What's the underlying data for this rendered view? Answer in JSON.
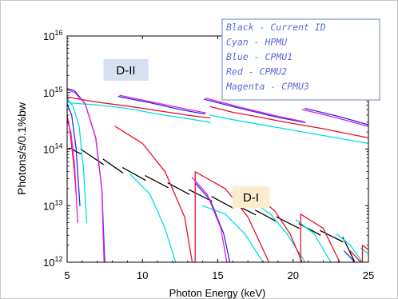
{
  "chart_data": {
    "type": "line",
    "xlabel": "Photon Energy (keV)",
    "ylabel": "Photons/s/0.1%bw",
    "xlim": [
      5,
      25
    ],
    "ylim_log10": [
      12,
      16
    ],
    "y_scale": "log",
    "xticks": [
      "5",
      "10",
      "15",
      "20",
      "25"
    ],
    "yticks": [
      {
        "base": "10",
        "exp": "12"
      },
      {
        "base": "10",
        "exp": "13"
      },
      {
        "base": "10",
        "exp": "14"
      },
      {
        "base": "10",
        "exp": "15"
      },
      {
        "base": "10",
        "exp": "16"
      }
    ],
    "legend": {
      "placement": "top-right",
      "entries": [
        {
          "color_name": "Black",
          "label": "Current ID"
        },
        {
          "color_name": "Cyan",
          "label": "HPMU"
        },
        {
          "color_name": "Blue",
          "label": "CPMU1"
        },
        {
          "color_name": "Red",
          "label": "CPMU2"
        },
        {
          "color_name": "Magenta",
          "label": "CPMU3"
        }
      ]
    },
    "annotations": [
      {
        "text": "D-II",
        "x": 8.9,
        "y_log10": 15.4,
        "bg": "#d7dff2"
      },
      {
        "text": "D-I",
        "x": 17.2,
        "y_log10": 13.15,
        "bg": "#fbeccd"
      }
    ],
    "colors": {
      "Black": "#000000",
      "Cyan": "#00e0e0",
      "Blue": "#2b2bd9",
      "Red": "#e3102a",
      "Magenta": "#e01ee0"
    },
    "series": [
      {
        "name": "Black",
        "color": "#000000",
        "segments": [
          {
            "x": [
              5.0,
              5.3,
              5.5,
              5.9
            ],
            "y": [
              14.0,
              14.02,
              13.97,
              13.92
            ]
          },
          {
            "x": [
              5.9,
              7.4
            ],
            "y": [
              14.0,
              13.73
            ]
          },
          {
            "x": [
              7.4,
              8.7
            ],
            "y": [
              13.82,
              13.58
            ]
          },
          {
            "x": [
              8.7,
              10.2
            ],
            "y": [
              13.67,
              13.45
            ]
          },
          {
            "x": [
              10.2,
              11.7
            ],
            "y": [
              13.53,
              13.32
            ]
          },
          {
            "x": [
              11.7,
              13.1
            ],
            "y": [
              13.4,
              13.2
            ]
          },
          {
            "x": [
              13.1,
              14.6
            ],
            "y": [
              13.28,
              13.08
            ]
          },
          {
            "x": [
              14.6,
              16.0
            ],
            "y": [
              13.16,
              12.96
            ]
          },
          {
            "x": [
              16.0,
              17.5
            ],
            "y": [
              13.04,
              12.84
            ]
          },
          {
            "x": [
              17.5,
              18.9
            ],
            "y": [
              12.92,
              12.72
            ]
          },
          {
            "x": [
              18.9,
              20.4
            ],
            "y": [
              12.8,
              12.6
            ]
          },
          {
            "x": [
              20.4,
              21.8
            ],
            "y": [
              12.68,
              12.48
            ]
          },
          {
            "x": [
              21.8,
              23.3
            ],
            "y": [
              12.56,
              12.36
            ]
          },
          {
            "x": [
              23.3,
              24.1
            ],
            "y": [
              12.44,
              12.0
            ]
          }
        ]
      },
      {
        "name": "Cyan",
        "color": "#00e0e0",
        "segments": [
          {
            "x": [
              5.0,
              5.4,
              5.8,
              6.1,
              6.3
            ],
            "y": [
              14.9,
              14.75,
              14.4,
              13.6,
              12.7
            ]
          },
          {
            "x": [
              5.0,
              7.0,
              9.0,
              11.0,
              13.0,
              14.5
            ],
            "y": [
              14.82,
              14.78,
              14.72,
              14.62,
              14.54,
              14.47
            ]
          },
          {
            "x": [
              14.5,
              16.0,
              17.5,
              19.0,
              20.5,
              22.0,
              23.5,
              25.0
            ],
            "y": [
              14.6,
              14.52,
              14.45,
              14.38,
              14.31,
              14.24,
              14.17,
              14.1
            ]
          },
          {
            "x": [
              9.2,
              10.5,
              11.5,
              12.2
            ],
            "y": [
              13.55,
              13.2,
              12.6,
              12.0
            ]
          },
          {
            "x": [
              14.0,
              15.5,
              16.8,
              18.0
            ],
            "y": [
              13.0,
              12.85,
              12.5,
              12.0
            ]
          },
          {
            "x": [
              17.4,
              18.5,
              19.6,
              20.8
            ],
            "y": [
              13.05,
              12.85,
              12.5,
              12.0
            ]
          },
          {
            "x": [
              20.2,
              21.4,
              22.5
            ],
            "y": [
              12.75,
              12.5,
              12.0
            ]
          },
          {
            "x": [
              22.9,
              23.8,
              24.6
            ],
            "y": [
              12.5,
              12.3,
              12.0
            ]
          },
          {
            "x": [
              24.5,
              25.0
            ],
            "y": [
              12.25,
              12.15
            ]
          }
        ]
      },
      {
        "name": "Blue",
        "color": "#2b2bd9",
        "segments": [
          {
            "x": [
              5.0,
              5.5,
              6.2,
              6.9,
              7.3,
              7.5
            ],
            "y": [
              15.07,
              15.03,
              14.8,
              14.2,
              13.3,
              12.0
            ]
          },
          {
            "x": [
              5.0,
              5.3,
              5.6,
              5.85
            ],
            "y": [
              14.8,
              14.6,
              14.0,
              13.0
            ]
          },
          {
            "x": [
              8.4,
              10.5,
              12.5,
              14.1
            ],
            "y": [
              14.93,
              14.82,
              14.7,
              14.62
            ]
          },
          {
            "x": [
              14.1,
              16.5,
              19.0,
              20.8
            ],
            "y": [
              14.88,
              14.72,
              14.56,
              14.47
            ]
          },
          {
            "x": [
              20.8,
              23.0,
              25.0
            ],
            "y": [
              14.72,
              14.58,
              14.43
            ]
          },
          {
            "x": [
              13.5,
              14.5,
              15.4,
              15.8
            ],
            "y": [
              13.4,
              13.1,
              12.5,
              12.0
            ]
          },
          {
            "x": [
              23.4,
              24.1
            ],
            "y": [
              12.2,
              12.0
            ]
          }
        ]
      },
      {
        "name": "Red",
        "color": "#e3102a",
        "segments": [
          {
            "x": [
              5.0,
              5.2,
              5.45,
              5.6
            ],
            "y": [
              14.6,
              14.3,
              13.7,
              13.2
            ]
          },
          {
            "x": [
              5.0,
              7.0,
              9.0,
              11.0,
              13.0,
              14.5
            ],
            "y": [
              14.92,
              14.83,
              14.76,
              14.68,
              14.6,
              14.55
            ]
          },
          {
            "x": [
              14.5,
              16.0,
              17.5,
              19.0,
              20.5,
              22.0,
              23.5,
              25.0
            ],
            "y": [
              14.75,
              14.65,
              14.58,
              14.5,
              14.43,
              14.36,
              14.28,
              14.2
            ]
          },
          {
            "x": [
              8.2,
              10.0,
              11.5,
              12.8,
              13.3
            ],
            "y": [
              14.4,
              14.1,
              13.6,
              12.8,
              12.0
            ]
          },
          {
            "x": [
              13.5,
              13.5,
              15.5,
              17.0,
              18.4
            ],
            "y": [
              12.0,
              13.6,
              13.3,
              12.8,
              12.0
            ]
          },
          {
            "x": [
              17.5,
              18.8,
              19.8,
              20.6
            ],
            "y": [
              13.2,
              12.9,
              12.5,
              12.0
            ]
          },
          {
            "x": [
              20.5,
              20.5,
              22.0,
              23.1
            ],
            "y": [
              12.0,
              12.85,
              12.6,
              12.0
            ]
          },
          {
            "x": [
              23.8,
              24.5
            ],
            "y": [
              12.2,
              12.0
            ]
          },
          {
            "x": [
              24.6,
              24.6,
              25.0
            ],
            "y": [
              12.0,
              12.3,
              12.22
            ]
          }
        ]
      },
      {
        "name": "Magenta",
        "color": "#e01ee0",
        "segments": [
          {
            "x": [
              5.0,
              5.5,
              6.2,
              6.9,
              7.3,
              7.45
            ],
            "y": [
              15.05,
              15.0,
              14.8,
              14.2,
              13.3,
              12.0
            ]
          },
          {
            "x": [
              5.0,
              5.25,
              5.5,
              5.7
            ],
            "y": [
              14.5,
              14.3,
              13.7,
              12.7
            ]
          },
          {
            "x": [
              8.5,
              10.5,
              12.5,
              14.2
            ],
            "y": [
              14.95,
              14.84,
              14.73,
              14.64
            ]
          },
          {
            "x": [
              14.2,
              16.5,
              19.0,
              20.6
            ],
            "y": [
              14.9,
              14.74,
              14.58,
              14.49
            ]
          },
          {
            "x": [
              20.6,
              22.8,
              25.0
            ],
            "y": [
              14.7,
              14.56,
              14.4
            ]
          },
          {
            "x": [
              13.3,
              14.3,
              15.2,
              15.6
            ],
            "y": [
              13.5,
              13.2,
              12.6,
              12.0
            ]
          }
        ]
      }
    ]
  }
}
